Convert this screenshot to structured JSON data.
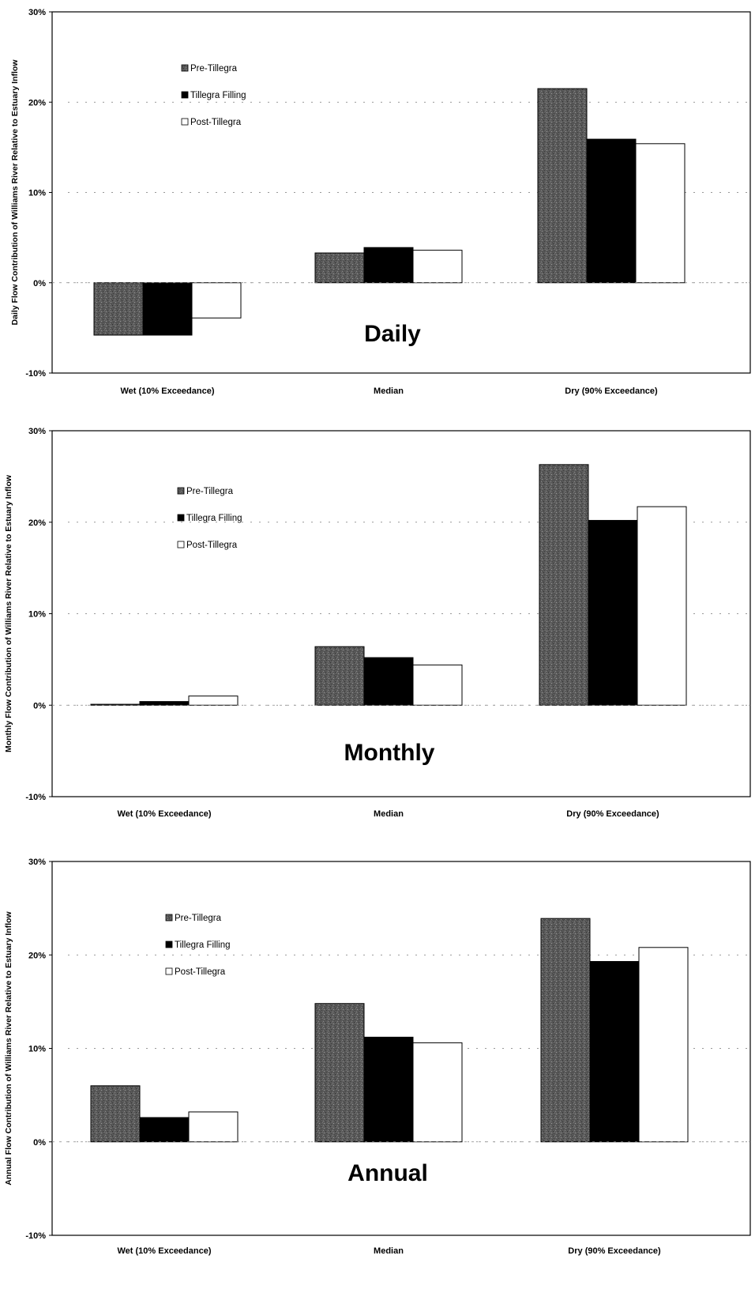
{
  "chart_data": [
    {
      "type": "bar",
      "title": "Daily",
      "ylabel": "Daily Flow Contribution of Williams River Relative to Estuary Inflow",
      "categories": [
        "Wet (10% Exceedance)",
        "Median",
        "Dry (90% Exceedance)"
      ],
      "series": [
        {
          "name": "Pre-Tillegra",
          "values": [
            -5.8,
            3.3,
            21.5
          ]
        },
        {
          "name": "Tillegra Filling",
          "values": [
            -5.8,
            3.9,
            15.9
          ]
        },
        {
          "name": "Post-Tillegra",
          "values": [
            -3.9,
            3.6,
            15.4
          ]
        }
      ],
      "ylim": [
        -10,
        30
      ],
      "yticks": [
        "30%",
        "20%",
        "10%",
        "0%",
        "-10%"
      ],
      "yticks_values": [
        30,
        20,
        10,
        0,
        -10
      ],
      "grid": true,
      "legend": "top-left"
    },
    {
      "type": "bar",
      "title": "Monthly",
      "ylabel": "Monthly Flow Contribution of Williams River Relative to Estuary Inflow",
      "categories": [
        "Wet (10% Exceedance)",
        "Median",
        "Dry (90% Exceedance)"
      ],
      "series": [
        {
          "name": "Pre-Tillegra",
          "values": [
            0.1,
            6.4,
            26.3
          ]
        },
        {
          "name": "Tillegra Filling",
          "values": [
            0.4,
            5.2,
            20.2
          ]
        },
        {
          "name": "Post-Tillegra",
          "values": [
            1.0,
            4.4,
            21.7
          ]
        }
      ],
      "ylim": [
        -10,
        30
      ],
      "yticks": [
        "30%",
        "20%",
        "10%",
        "0%",
        "-10%"
      ],
      "yticks_values": [
        30,
        20,
        10,
        0,
        -10
      ],
      "grid": true,
      "legend": "top-left"
    },
    {
      "type": "bar",
      "title": "Annual",
      "ylabel": "Annual Flow Contribution of Williams River Relative to Estuary Inflow",
      "categories": [
        "Wet (10% Exceedance)",
        "Median",
        "Dry (90% Exceedance)"
      ],
      "series": [
        {
          "name": "Pre-Tillegra",
          "values": [
            6.0,
            14.8,
            23.9
          ]
        },
        {
          "name": "Tillegra Filling",
          "values": [
            2.6,
            11.2,
            19.3
          ]
        },
        {
          "name": "Post-Tillegra",
          "values": [
            3.2,
            10.6,
            20.8
          ]
        }
      ],
      "ylim": [
        -10,
        30
      ],
      "yticks": [
        "30%",
        "20%",
        "10%",
        "0%",
        "-10%"
      ],
      "yticks_values": [
        30,
        20,
        10,
        0,
        -10
      ],
      "grid": true,
      "legend": "top-left"
    }
  ],
  "colors": {
    "Pre-Tillegra": "#5a5a5a",
    "Tillegra Filling": "#000000",
    "Post-Tillegra": "#ffffff"
  }
}
